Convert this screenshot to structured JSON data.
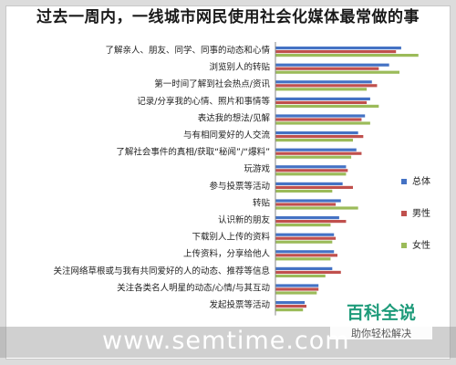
{
  "chart_data": {
    "type": "bar",
    "orientation": "horizontal",
    "title": "过去一周内，一线城市网民使用社会化媒体最常做的事",
    "categories": [
      "了解亲人、朋友、同学、同事的动态和心情",
      "浏览别人的转贴",
      "第一时间了解到社会热点/资讯",
      "记录/分享我的心情、照片和事情等",
      "表达我的想法/见解",
      "与有相同爱好的人交流",
      "了解社会事件的真相/获取“秘闻”/“爆料”",
      "玩游戏",
      "参与投票等活动",
      "转贴",
      "认识新的朋友",
      "下载别人上传的资料",
      "上传资料，分享给他人",
      "关注网络草根或与我有共同爱好的人的动态、推荐等信息",
      "关注各类名人明星的动态/心情/与其互动",
      "发起投票等活动"
    ],
    "series": [
      {
        "name": "总体",
        "color": "#4472c4",
        "values": [
          73,
          66,
          56,
          55,
          52,
          48,
          47,
          41,
          39,
          38,
          37,
          34,
          34,
          33,
          25,
          17
        ]
      },
      {
        "name": "男性",
        "color": "#c0504d",
        "values": [
          70,
          60,
          59,
          53,
          50,
          51,
          50,
          42,
          45,
          35,
          41,
          35,
          36,
          38,
          25,
          18
        ]
      },
      {
        "name": "女性",
        "color": "#9bbb59",
        "values": [
          83,
          72,
          53,
          60,
          55,
          45,
          44,
          41,
          33,
          48,
          32,
          33,
          32,
          29,
          24,
          16
        ]
      }
    ],
    "xlim": [
      0,
      90
    ],
    "grid": false,
    "legend_position": "right"
  },
  "watermark": {
    "text": "www.semtime.com"
  },
  "logo": {
    "main": "百科全说",
    "sub": "助你轻松解决"
  }
}
